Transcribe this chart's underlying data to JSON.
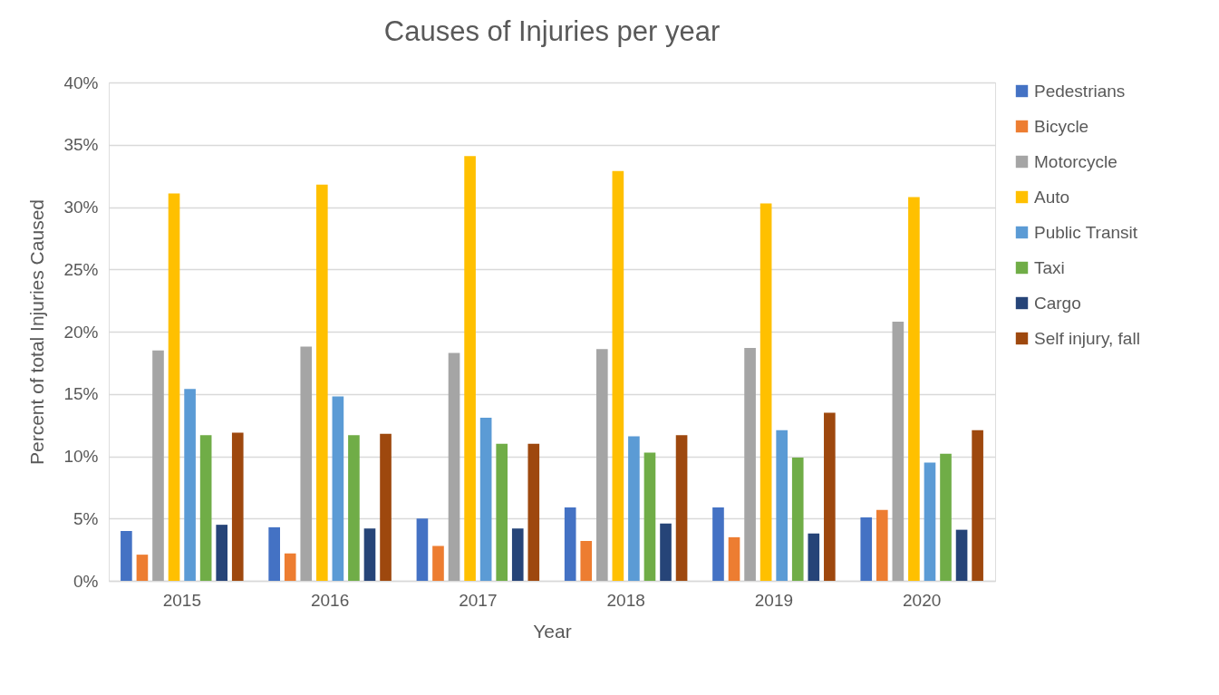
{
  "chart_data": {
    "type": "bar",
    "title": "Causes of Injuries per year",
    "xlabel": "Year",
    "ylabel": "Percent of total Injuries Caused",
    "categories": [
      "2015",
      "2016",
      "2017",
      "2018",
      "2019",
      "2020"
    ],
    "series": [
      {
        "name": "Pedestrians",
        "color": "#4472c4",
        "values": [
          4.0,
          4.3,
          5.0,
          5.9,
          5.9,
          5.1
        ]
      },
      {
        "name": "Bicycle",
        "color": "#ed7d31",
        "values": [
          2.1,
          2.2,
          2.8,
          3.2,
          3.5,
          5.7
        ]
      },
      {
        "name": "Motorcycle",
        "color": "#a5a5a5",
        "values": [
          18.5,
          18.8,
          18.3,
          18.6,
          18.7,
          20.8
        ]
      },
      {
        "name": "Auto",
        "color": "#ffc000",
        "values": [
          31.1,
          31.8,
          34.1,
          32.9,
          30.3,
          30.8
        ]
      },
      {
        "name": "Public Transit",
        "color": "#5b9bd5",
        "values": [
          15.4,
          14.8,
          13.1,
          11.6,
          12.1,
          9.5
        ]
      },
      {
        "name": "Taxi",
        "color": "#70ad47",
        "values": [
          11.7,
          11.7,
          11.0,
          10.3,
          9.9,
          10.2
        ]
      },
      {
        "name": "Cargo",
        "color": "#264478",
        "values": [
          4.5,
          4.2,
          4.2,
          4.6,
          3.8,
          4.1
        ]
      },
      {
        "name": "Self injury, fall",
        "color": "#9e480e",
        "values": [
          11.9,
          11.8,
          11.0,
          11.7,
          13.5,
          12.1
        ]
      }
    ],
    "ylim": [
      0,
      40
    ],
    "yticks": [
      {
        "value": 0,
        "label": "0%"
      },
      {
        "value": 5,
        "label": "5%"
      },
      {
        "value": 10,
        "label": "10%"
      },
      {
        "value": 15,
        "label": "15%"
      },
      {
        "value": 20,
        "label": "20%"
      },
      {
        "value": 25,
        "label": "25%"
      },
      {
        "value": 30,
        "label": "30%"
      },
      {
        "value": 35,
        "label": "35%"
      },
      {
        "value": 40,
        "label": "40%"
      }
    ],
    "grid": "y",
    "legend": "right"
  }
}
